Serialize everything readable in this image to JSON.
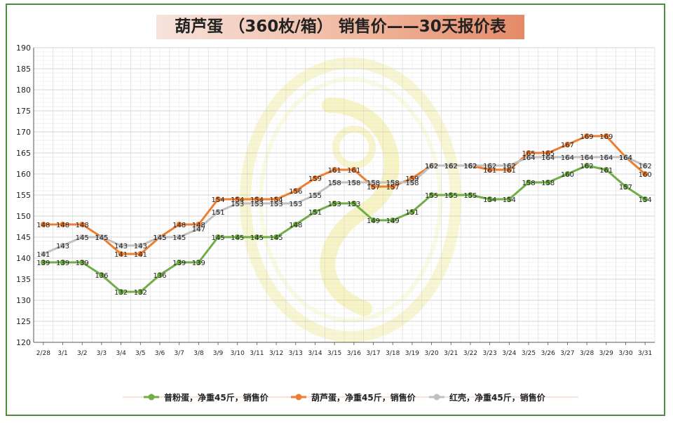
{
  "title": "葫芦蛋 （360枚/箱） 销售价——30天报价表",
  "chart_data": {
    "type": "line",
    "categories": [
      "2/28",
      "3/1",
      "3/2",
      "3/3",
      "3/4",
      "3/5",
      "3/6",
      "3/7",
      "3/8",
      "3/9",
      "3/10",
      "3/11",
      "3/12",
      "3/13",
      "3/14",
      "3/15",
      "3/16",
      "3/17",
      "3/18",
      "3/19",
      "3/20",
      "3/21",
      "3/22",
      "3/23",
      "3/24",
      "3/25",
      "3/26",
      "3/27",
      "3/28",
      "3/29",
      "3/30",
      "3/31"
    ],
    "ylim": [
      120,
      190
    ],
    "yticks": [
      120,
      125,
      130,
      135,
      140,
      145,
      150,
      155,
      160,
      165,
      170,
      175,
      180,
      185,
      190
    ],
    "grid": true,
    "legend_position": "bottom",
    "series": [
      {
        "name": "普粉蛋，净重45斤，销售价",
        "color": "#70ad47",
        "values": [
          139,
          139,
          139,
          136,
          132,
          132,
          136,
          139,
          139,
          145,
          145,
          145,
          145,
          148,
          151,
          153,
          153,
          149,
          149,
          151,
          155,
          155,
          155,
          154,
          154,
          158,
          158,
          160,
          162,
          161,
          157,
          154
        ]
      },
      {
        "name": "葫芦蛋，净重45斤，销售价",
        "color": "#ed7d31",
        "values": [
          148,
          148,
          148,
          145,
          141,
          141,
          145,
          148,
          148,
          154,
          154,
          154,
          154,
          156,
          159,
          161,
          161,
          157,
          157,
          159,
          162,
          162,
          162,
          161,
          161,
          165,
          165,
          167,
          169,
          169,
          164,
          160
        ]
      },
      {
        "name": "红壳，净重45斤，销售价",
        "color": "#c0c0c0",
        "values": [
          141,
          143,
          145,
          145,
          143,
          143,
          145,
          145,
          147,
          151,
          153,
          153,
          153,
          153,
          155,
          158,
          158,
          158,
          158,
          158,
          162,
          162,
          162,
          162,
          162,
          164,
          164,
          164,
          164,
          164,
          164,
          162
        ]
      }
    ]
  }
}
